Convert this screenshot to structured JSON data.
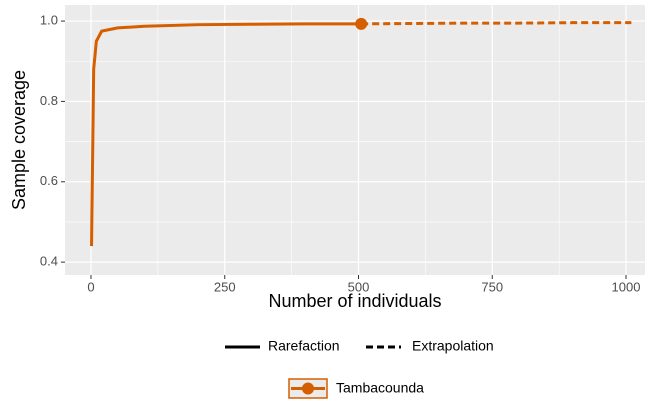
{
  "chart_data": {
    "type": "line",
    "xlabel": "Number of individuals",
    "ylabel": "Sample coverage",
    "xlim": [
      -48.6,
      1035.5
    ],
    "ylim": [
      0.368,
      1.04
    ],
    "xticks": [
      0,
      250,
      500,
      750,
      1000
    ],
    "yticks": [
      0.4,
      0.6,
      0.8,
      {
        "value": 1,
        "label": "1.0"
      }
    ],
    "xminor": [
      125,
      375,
      625,
      875
    ],
    "yminor": [
      0.5,
      0.7,
      0.9
    ],
    "grid": true,
    "linetypes": {
      "rarefaction": {
        "label": "Rarefaction",
        "dash": "solid"
      },
      "extrapolation": {
        "label": "Extrapolation",
        "dash": "dashed"
      }
    },
    "series": [
      {
        "name": "Tambacounda",
        "color": "#d55e00",
        "rarefaction": {
          "x": [
            1,
            5,
            10,
            20,
            50,
            100,
            200,
            300,
            400,
            505
          ],
          "values": [
            0.44,
            0.88,
            0.95,
            0.975,
            0.983,
            0.987,
            0.991,
            0.992,
            0.993,
            0.993
          ]
        },
        "extrapolation": {
          "x": [
            505,
            600,
            700,
            800,
            900,
            1010
          ],
          "values": [
            0.993,
            0.994,
            0.995,
            0.995,
            0.996,
            0.996
          ]
        },
        "observed": {
          "x": 505,
          "value": 0.993
        }
      }
    ]
  }
}
